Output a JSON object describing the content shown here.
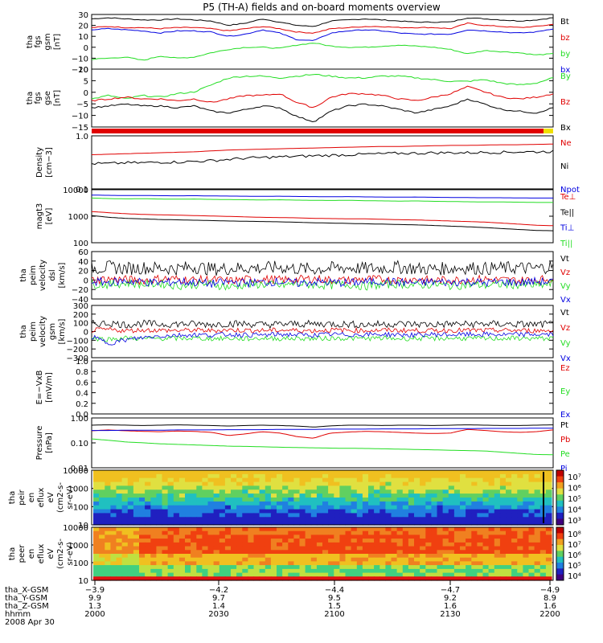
{
  "title": "P5 (TH-A) fields and on-board moments overview",
  "colors": {
    "black": "#000000",
    "red": "#e00000",
    "green": "#22dd22",
    "blue": "#0000e0",
    "yellow": "#f0e000"
  },
  "chart_data": [
    {
      "type": "line",
      "panel": 1,
      "ylabel": [
        "tha",
        "fgs",
        "gsm",
        "[nT]"
      ],
      "yticks": [
        "30",
        "20",
        "10",
        "0",
        "−10",
        "−20"
      ],
      "ylim": [
        -20,
        30
      ],
      "series": [
        {
          "name": "Bt",
          "color": "black",
          "values": [
            26,
            27,
            26,
            25,
            25,
            26,
            25,
            24,
            20,
            22,
            26,
            23,
            20,
            19,
            24,
            25,
            26,
            25,
            24,
            23,
            23,
            23,
            27,
            26,
            25,
            24,
            25,
            27
          ]
        },
        {
          "name": "bz",
          "color": "red",
          "values": [
            18,
            19,
            18,
            18,
            17,
            18,
            18,
            17,
            15,
            17,
            19,
            17,
            14,
            13,
            17,
            18,
            19,
            19,
            18,
            18,
            18,
            17,
            22,
            20,
            19,
            18,
            19,
            21
          ]
        },
        {
          "name": "by",
          "color": "green",
          "values": [
            -11,
            -10,
            -9,
            -12,
            -8,
            -10,
            -9,
            -5,
            -2,
            0,
            0,
            -1,
            2,
            4,
            1,
            0,
            0,
            1,
            2,
            1,
            0,
            -2,
            -6,
            -3,
            -4,
            -5,
            -7,
            -6
          ]
        },
        {
          "name": "bx",
          "color": "blue",
          "values": [
            16,
            17,
            16,
            15,
            13,
            15,
            15,
            14,
            10,
            12,
            16,
            13,
            7,
            6,
            13,
            15,
            16,
            15,
            13,
            12,
            12,
            12,
            16,
            15,
            14,
            13,
            14,
            17
          ]
        }
      ]
    },
    {
      "type": "line",
      "panel": 2,
      "ylabel": [
        "tha",
        "fgs",
        "gse",
        "[nT]"
      ],
      "yticks": [
        "10",
        "5",
        "0",
        "−5",
        "−10",
        "−15"
      ],
      "ylim": [
        -18,
        15
      ],
      "series": [
        {
          "name": "By",
          "color": "green",
          "values": [
            -2,
            0,
            -2,
            0,
            -1,
            1,
            2,
            6,
            10,
            11,
            11,
            10,
            11,
            12,
            11,
            10,
            10,
            11,
            11,
            10,
            9,
            8,
            8,
            9,
            7,
            6,
            7,
            10
          ]
        },
        {
          "name": "Bz",
          "color": "red",
          "values": [
            -3,
            -2,
            -1,
            -2,
            -2,
            -3,
            -2,
            -4,
            -2,
            0,
            0,
            1,
            -4,
            -7,
            -1,
            1,
            1,
            0,
            -2,
            -3,
            -1,
            1,
            5,
            2,
            -1,
            -2,
            -1,
            1
          ]
        },
        {
          "name": "Bx",
          "color": "black",
          "values": [
            -7,
            -6,
            -5,
            -6,
            -6,
            -7,
            -6,
            -9,
            -10,
            -8,
            -6,
            -7,
            -12,
            -15,
            -9,
            -6,
            -5,
            -6,
            -8,
            -10,
            -8,
            -6,
            -2,
            -5,
            -8,
            -9,
            -10,
            -7
          ]
        }
      ]
    },
    {
      "type": "line",
      "panel": 4,
      "scale": "log",
      "ylabel": [
        "Density",
        "[cm−3]"
      ],
      "yticks": [
        "1.0",
        "0.1"
      ],
      "ylim": [
        0.1,
        1.0
      ],
      "series": [
        {
          "name": "Ne",
          "color": "red",
          "values": [
            0.44,
            0.45,
            0.46,
            0.47,
            0.48,
            0.49,
            0.5,
            0.52,
            0.54,
            0.55,
            0.56,
            0.57,
            0.58,
            0.59,
            0.6,
            0.61,
            0.62,
            0.63,
            0.63,
            0.64,
            0.65,
            0.66,
            0.66,
            0.67,
            0.68,
            0.68,
            0.69,
            0.7
          ]
        },
        {
          "name": "Ni",
          "color": "black",
          "values": [
            0.3,
            0.3,
            0.31,
            0.31,
            0.32,
            0.32,
            0.33,
            0.34,
            0.36,
            0.38,
            0.39,
            0.4,
            0.41,
            0.42,
            0.43,
            0.44,
            0.45,
            0.46,
            0.47,
            0.47,
            0.48,
            0.48,
            0.48,
            0.49,
            0.49,
            0.5,
            0.5,
            0.51
          ]
        },
        {
          "name": "Npot",
          "color": "blue",
          "values": []
        }
      ]
    },
    {
      "type": "line",
      "panel": 5,
      "scale": "log",
      "ylabel": [
        "magt3",
        "[eV]"
      ],
      "yticks": [
        "10000",
        "1000",
        "100"
      ],
      "ylim": [
        100,
        15000
      ],
      "series": [
        {
          "name": "Te⊥",
          "color": "red",
          "values": [
            1900,
            1700,
            1550,
            1450,
            1400,
            1350,
            1300,
            1250,
            1200,
            1150,
            1100,
            1080,
            1050,
            1000,
            980,
            960,
            950,
            920,
            880,
            860,
            820,
            780,
            740,
            700,
            640,
            580,
            520,
            500
          ]
        },
        {
          "name": "Te||",
          "color": "black",
          "values": [
            1300,
            1100,
            1000,
            950,
            900,
            870,
            840,
            810,
            780,
            760,
            740,
            720,
            690,
            660,
            640,
            620,
            600,
            580,
            560,
            540,
            510,
            480,
            450,
            420,
            380,
            350,
            320,
            310
          ]
        },
        {
          "name": "Ti⊥",
          "color": "blue",
          "values": [
            9000,
            8800,
            8600,
            8700,
            8500,
            8400,
            8500,
            8300,
            8200,
            8100,
            8000,
            8100,
            7900,
            7800,
            7700,
            7800,
            7600,
            7500,
            7400,
            7500,
            7300,
            7200,
            7100,
            7000,
            7000,
            6900,
            6800,
            6800
          ]
        },
        {
          "name": "Ti||",
          "color": "green",
          "values": [
            6800,
            6500,
            6300,
            6400,
            6200,
            6100,
            6200,
            6000,
            5900,
            5800,
            5700,
            5800,
            5600,
            5500,
            5400,
            5500,
            5300,
            5200,
            5100,
            5200,
            5000,
            4900,
            4800,
            4700,
            4700,
            4600,
            4500,
            4500
          ]
        }
      ]
    },
    {
      "type": "line",
      "panel": 6,
      "ylabel": [
        "tha",
        "peim",
        "velocity",
        "dsl",
        "[km/s]"
      ],
      "yticks": [
        "60",
        "40",
        "20",
        "0",
        "−20",
        "−40"
      ],
      "ylim": [
        -40,
        60
      ],
      "series": [
        {
          "name": "Vt",
          "color": "black",
          "values": [
            25,
            27,
            24,
            26,
            25,
            24,
            28,
            23,
            24,
            26,
            25,
            27,
            24,
            23,
            25,
            26,
            24,
            25,
            27,
            24,
            23,
            25,
            26,
            24,
            25,
            26,
            24,
            30
          ]
        },
        {
          "name": "Vz",
          "color": "red",
          "values": [
            0,
            2,
            1,
            -1,
            3,
            2,
            0,
            1,
            -2,
            1,
            2,
            0,
            1,
            3,
            0,
            -1,
            2,
            1,
            0,
            2,
            -1,
            0,
            1,
            2,
            0,
            -1,
            1,
            2
          ]
        },
        {
          "name": "Vy",
          "color": "green",
          "values": [
            -8,
            -10,
            -6,
            -9,
            -7,
            -12,
            -10,
            -8,
            -15,
            -10,
            -9,
            -12,
            -8,
            -10,
            -11,
            -9,
            -13,
            -10,
            -8,
            -11,
            -9,
            -12,
            -10,
            -11,
            -9,
            -10,
            -12,
            -8
          ]
        },
        {
          "name": "Vx",
          "color": "blue",
          "values": [
            -3,
            -5,
            -2,
            -4,
            -6,
            -3,
            -5,
            -8,
            -4,
            -6,
            -5,
            -3,
            -7,
            -4,
            -5,
            -6,
            -4,
            -3,
            -5,
            -6,
            -4,
            -5,
            -3,
            -6,
            -4,
            -5,
            -3,
            -4
          ]
        }
      ]
    },
    {
      "type": "line",
      "panel": 7,
      "ylabel": [
        "tha",
        "peim",
        "velocity",
        "gsm",
        "[km/s]"
      ],
      "yticks": [
        "300",
        "200",
        "100",
        "0",
        "−100",
        "−200",
        "−300"
      ],
      "ylim": [
        -300,
        350
      ],
      "series": [
        {
          "name": "Vt",
          "color": "black",
          "values": [
            120,
            130,
            110,
            125,
            115,
            120,
            118,
            112,
            125,
            120,
            110,
            115,
            120,
            118,
            122,
            115,
            110,
            118,
            120,
            116,
            112,
            118,
            115,
            120,
            118,
            115,
            112,
            118
          ]
        },
        {
          "name": "Vz",
          "color": "red",
          "values": [
            40,
            50,
            35,
            45,
            40,
            38,
            42,
            36,
            45,
            40,
            38,
            42,
            40,
            36,
            44,
            40,
            38,
            42,
            40,
            38,
            36,
            42,
            40,
            38,
            40,
            38,
            36,
            40
          ]
        },
        {
          "name": "Vy",
          "color": "green",
          "values": [
            -60,
            -70,
            -55,
            -65,
            -60,
            -62,
            -58,
            -64,
            -60,
            -66,
            -58,
            -62,
            -60,
            -64,
            -58,
            -60,
            -62,
            -58,
            -64,
            -60,
            -62,
            -58,
            -60,
            -64,
            -60,
            -58,
            -62,
            -60
          ]
        },
        {
          "name": "Vx",
          "color": "blue",
          "values": [
            -40,
            -120,
            -80,
            -50,
            -30,
            -20,
            -15,
            -20,
            -10,
            -15,
            -20,
            -10,
            -15,
            -20,
            -10,
            -15,
            -12,
            -10,
            -15,
            -20,
            -10,
            -15,
            -12,
            -10,
            -15,
            -12,
            -10,
            -12
          ]
        }
      ]
    },
    {
      "type": "line",
      "panel": 8,
      "ylabel": [
        "E=−VxB",
        "[mV/m]"
      ],
      "yticks": [
        "1.0",
        "0.8",
        "0.6",
        "0.4",
        "0.2",
        "0.0"
      ],
      "ylim": [
        0,
        1
      ],
      "series": [
        {
          "name": "Ez",
          "color": "red",
          "values": []
        },
        {
          "name": "Ey",
          "color": "green",
          "values": []
        },
        {
          "name": "Ex",
          "color": "blue",
          "values": []
        }
      ]
    },
    {
      "type": "line",
      "panel": 9,
      "scale": "log",
      "ylabel": [
        "Pressure",
        "[nPa]"
      ],
      "yticks": [
        "1.00",
        "0.10",
        "0.01"
      ],
      "ylim": [
        0.01,
        1.2
      ],
      "series": [
        {
          "name": "Pt",
          "color": "black",
          "values": [
            0.6,
            0.62,
            0.6,
            0.58,
            0.6,
            0.62,
            0.6,
            0.58,
            0.55,
            0.58,
            0.6,
            0.58,
            0.55,
            0.5,
            0.56,
            0.6,
            0.6,
            0.58,
            0.6,
            0.6,
            0.58,
            0.6,
            0.62,
            0.6,
            0.58,
            0.58,
            0.6,
            0.62
          ]
        },
        {
          "name": "Pb",
          "color": "red",
          "values": [
            0.35,
            0.38,
            0.35,
            0.33,
            0.32,
            0.34,
            0.33,
            0.3,
            0.22,
            0.26,
            0.32,
            0.28,
            0.2,
            0.17,
            0.28,
            0.31,
            0.33,
            0.32,
            0.3,
            0.28,
            0.27,
            0.28,
            0.4,
            0.36,
            0.32,
            0.3,
            0.32,
            0.38
          ]
        },
        {
          "name": "Pe",
          "color": "green",
          "values": [
            0.16,
            0.14,
            0.12,
            0.11,
            0.1,
            0.095,
            0.09,
            0.085,
            0.08,
            0.078,
            0.075,
            0.072,
            0.07,
            0.068,
            0.066,
            0.065,
            0.064,
            0.062,
            0.06,
            0.058,
            0.056,
            0.054,
            0.052,
            0.05,
            0.045,
            0.04,
            0.036,
            0.035
          ]
        },
        {
          "name": "Pi",
          "color": "blue",
          "values": [
            0.36,
            0.36,
            0.37,
            0.37,
            0.37,
            0.38,
            0.38,
            0.38,
            0.39,
            0.39,
            0.39,
            0.4,
            0.4,
            0.4,
            0.41,
            0.41,
            0.41,
            0.42,
            0.42,
            0.42,
            0.43,
            0.43,
            0.43,
            0.44,
            0.44,
            0.44,
            0.45,
            0.45
          ]
        }
      ]
    },
    {
      "type": "heatmap",
      "panel": 10,
      "ylabel": [
        "tha",
        "peir",
        "en",
        "eflux",
        "eV",
        "(cm2-s-",
        "sr-eV)"
      ],
      "yticks": [
        "10000",
        "1000",
        "100",
        "10"
      ],
      "colorbar": [
        "10⁷",
        "10⁶",
        "10⁵",
        "10⁴",
        "10³"
      ]
    },
    {
      "type": "heatmap",
      "panel": 11,
      "ylabel": [
        "tha",
        "peer",
        "en",
        "eflux",
        "eV",
        "(cm2-s-",
        "sr-eV)"
      ],
      "yticks": [
        "10000",
        "1000",
        "100",
        "10"
      ],
      "colorbar": [
        "10⁸",
        "10⁷",
        "10⁶",
        "10⁵",
        "10⁴"
      ]
    }
  ],
  "xaxis": {
    "rows": [
      {
        "label": "tha_X-GSM",
        "values": [
          "−3.9",
          "−4.2",
          "−4.4",
          "−4.7",
          "−4.9"
        ]
      },
      {
        "label": "tha_Y-GSM",
        "values": [
          "9.9",
          "9.7",
          "9.5",
          "9.2",
          "8.9"
        ]
      },
      {
        "label": "tha_Z-GSM",
        "values": [
          "1.3",
          "1.4",
          "1.5",
          "1.6",
          "1.6"
        ]
      },
      {
        "label": "hhmm",
        "values": [
          "2000",
          "2030",
          "2100",
          "2130",
          "2200"
        ]
      }
    ],
    "date": "2008 Apr 30"
  }
}
